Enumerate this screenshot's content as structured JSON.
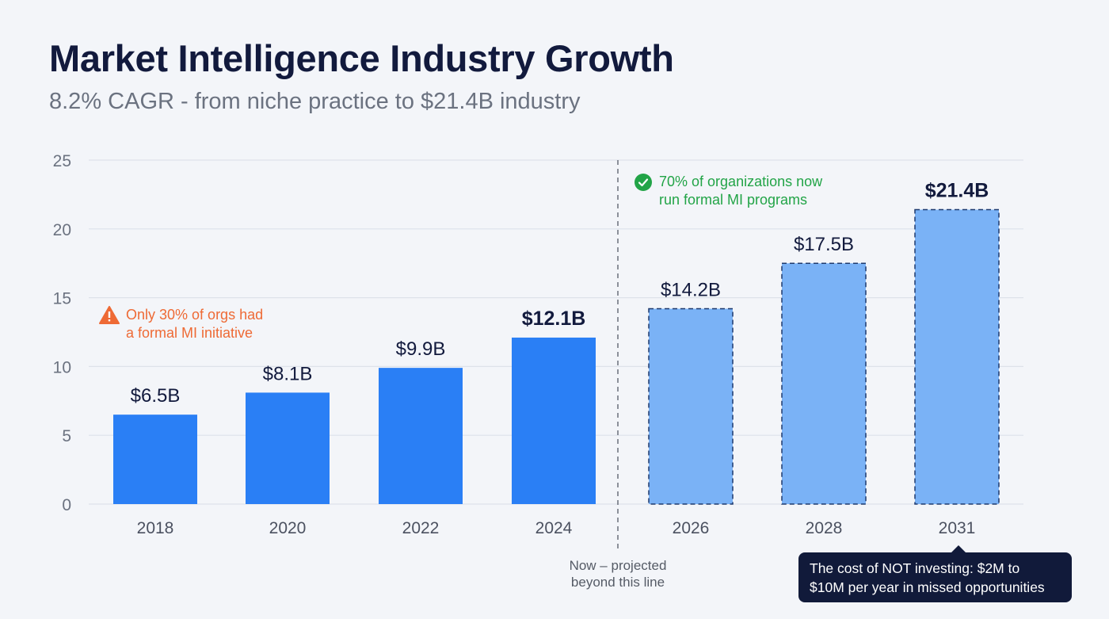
{
  "title": "Market Intelligence Industry Growth",
  "subtitle": "8.2% CAGR - from niche practice to $21.4B industry",
  "chart_data": {
    "type": "bar",
    "categories": [
      "2018",
      "2020",
      "2022",
      "2024",
      "2026",
      "2028",
      "2031"
    ],
    "values": [
      6.5,
      8.1,
      9.9,
      12.1,
      14.2,
      17.5,
      21.4
    ],
    "data_labels": [
      "$6.5B",
      "$8.1B",
      "$9.9B",
      "$12.1B",
      "$14.2B",
      "$17.5B",
      "$21.4B"
    ],
    "projected": [
      false,
      false,
      false,
      false,
      true,
      true,
      true
    ],
    "bold_labels": [
      false,
      false,
      false,
      true,
      false,
      false,
      true
    ],
    "yticks": [
      0,
      5,
      10,
      15,
      20,
      25
    ],
    "ylim": [
      0,
      25
    ],
    "grid": true,
    "colors": {
      "actual": "#2a7ff5",
      "projected": "#7ab2f6",
      "projected_border": "#1e3a6e"
    },
    "annotations": {
      "warning": [
        "Only 30% of orgs had",
        "a formal MI initiative"
      ],
      "success": [
        "70% of organizations now",
        "run formal MI programs"
      ],
      "divider": [
        "Now – projected",
        "beyond this line"
      ],
      "callout": [
        "The cost of NOT investing: $2M to",
        "$10M per year in missed opportunities"
      ]
    }
  }
}
